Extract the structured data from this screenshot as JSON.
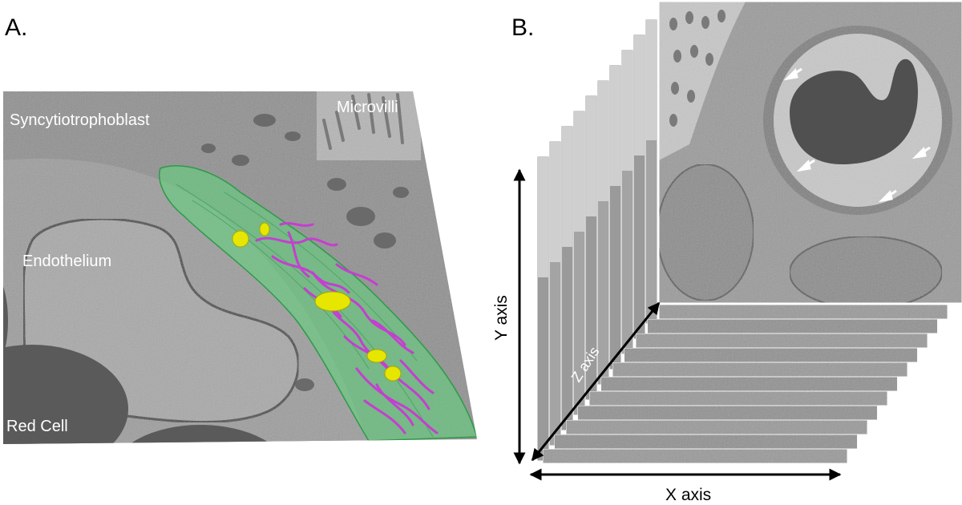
{
  "panel_a": {
    "letter": "A.",
    "labels": {
      "syncytiotrophoblast": "Syncytiotrophoblast",
      "microvilli": "Microvilli",
      "endothelium": "Endothelium",
      "red_cell": "Red Cell"
    },
    "colors": {
      "em_background": "#8f8f8f",
      "cell_outline": "#5cd67a",
      "mitochondria": "#c43fd0",
      "vesicles": "#e6e600"
    }
  },
  "panel_b": {
    "letter": "B.",
    "axes": {
      "y": "Y axis",
      "z": "Z axis",
      "x": "X axis"
    },
    "colors": {
      "em_background": "#9a9a9a",
      "red_cell": "#505050"
    }
  }
}
